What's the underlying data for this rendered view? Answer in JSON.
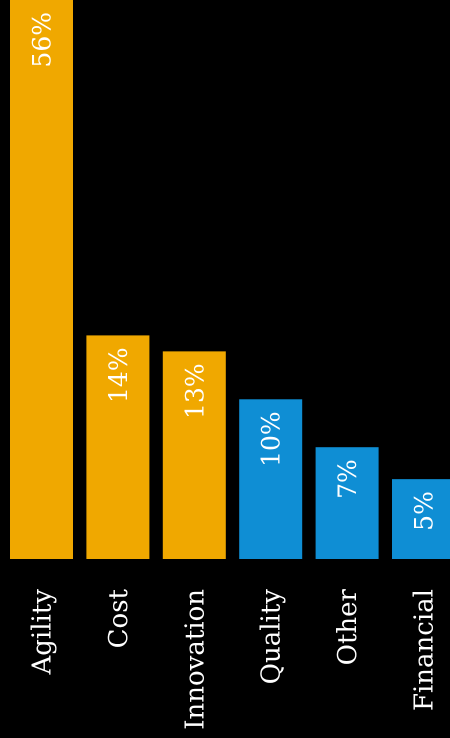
{
  "chart_data": {
    "type": "bar",
    "categories": [
      "Agility",
      "Cost",
      "Innovation",
      "Quality",
      "Other",
      "Financial"
    ],
    "values": [
      56,
      14,
      13,
      10,
      7,
      5
    ],
    "value_labels": [
      "56%",
      "14%",
      "13%",
      "10%",
      "7%",
      "5%"
    ],
    "ylim": [
      0,
      35
    ],
    "grid": false,
    "bar_colors": [
      "#f0a800",
      "#f0a800",
      "#f0a800",
      "#0f8ed4",
      "#0f8ed4",
      "#0f8ed4"
    ],
    "background": "#000000",
    "text_color": "#ffffff"
  }
}
